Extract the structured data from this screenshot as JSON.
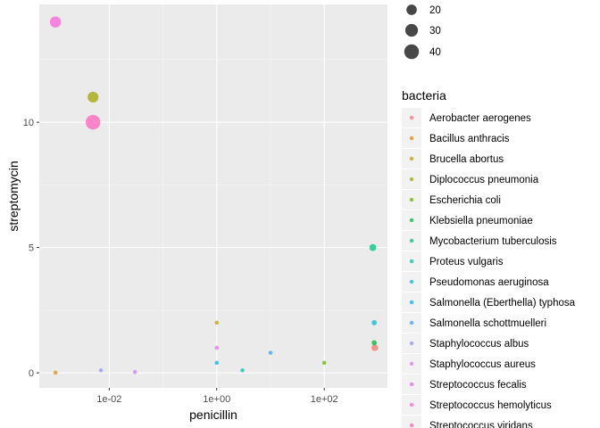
{
  "chart_data": {
    "type": "scatter",
    "xlabel": "penicillin",
    "ylabel": "streptomycin",
    "x_scale": "log10",
    "xlim": [
      0.0005,
      1500
    ],
    "ylim": [
      -0.6,
      14.7
    ],
    "x_ticks": [
      {
        "value": 0.01,
        "label": "1e-02"
      },
      {
        "value": 1,
        "label": "1e+00"
      },
      {
        "value": 100,
        "label": "1e+02"
      }
    ],
    "y_ticks": [
      {
        "value": 0,
        "label": "0"
      },
      {
        "value": 5,
        "label": "5"
      },
      {
        "value": 10,
        "label": "10"
      }
    ],
    "grid": true,
    "legend_position": "right",
    "size_legend": {
      "title": "",
      "entries": [
        {
          "value": 20,
          "label": "20"
        },
        {
          "value": 30,
          "label": "30"
        },
        {
          "value": 40,
          "label": "40"
        }
      ]
    },
    "color_legend": {
      "title": "bacteria",
      "entries": [
        {
          "name": "Aerobacter aerogenes",
          "color": "#F8766D"
        },
        {
          "name": "Bacillus anthracis",
          "color": "#E58700"
        },
        {
          "name": "Brucella abortus",
          "color": "#C99800"
        },
        {
          "name": "Diplococcus pneumonia",
          "color": "#A3A500"
        },
        {
          "name": "Escherichia coli",
          "color": "#6BB100"
        },
        {
          "name": "Klebsiella pneumoniae",
          "color": "#00BA38"
        },
        {
          "name": "Mycobacterium tuberculosis",
          "color": "#00BF7D"
        },
        {
          "name": "Proteus vulgaris",
          "color": "#00C0AF"
        },
        {
          "name": "Pseudomonas aeruginosa",
          "color": "#00BCD8"
        },
        {
          "name": "Salmonella (Eberthella) typhosa",
          "color": "#00B0F6"
        },
        {
          "name": "Salmonella schottmuelleri",
          "color": "#35A2FF"
        },
        {
          "name": "Staphylococcus albus",
          "color": "#9590FF"
        },
        {
          "name": "Staphylococcus aureus",
          "color": "#C77CFF"
        },
        {
          "name": "Streptococcus fecalis",
          "color": "#E76BF3"
        },
        {
          "name": "Streptococcus hemolyticus",
          "color": "#FA62DB"
        },
        {
          "name": "Streptococcus viridans",
          "color": "#FF62BC"
        }
      ]
    },
    "points": [
      {
        "bacteria": "Aerobacter aerogenes",
        "penicillin": 870,
        "streptomycin": 1,
        "size": 8
      },
      {
        "bacteria": "Bacillus anthracis",
        "penicillin": 0.001,
        "streptomycin": 0.01,
        "size": 3
      },
      {
        "bacteria": "Brucella abortus",
        "penicillin": 1,
        "streptomycin": 2,
        "size": 3
      },
      {
        "bacteria": "Diplococcus pneumonia",
        "penicillin": 0.005,
        "streptomycin": 11,
        "size": 22
      },
      {
        "bacteria": "Escherichia coli",
        "penicillin": 100,
        "streptomycin": 0.4,
        "size": 3
      },
      {
        "bacteria": "Klebsiella pneumoniae",
        "penicillin": 850,
        "streptomycin": 1.2,
        "size": 5
      },
      {
        "bacteria": "Mycobacterium tuberculosis",
        "penicillin": 800,
        "streptomycin": 5,
        "size": 9
      },
      {
        "bacteria": "Proteus vulgaris",
        "penicillin": 3,
        "streptomycin": 0.1,
        "size": 3
      },
      {
        "bacteria": "Pseudomonas aeruginosa",
        "penicillin": 850,
        "streptomycin": 2,
        "size": 5
      },
      {
        "bacteria": "Salmonella (Eberthella) typhosa",
        "penicillin": 1,
        "streptomycin": 0.4,
        "size": 3
      },
      {
        "bacteria": "Salmonella schottmuelleri",
        "penicillin": 10,
        "streptomycin": 0.8,
        "size": 3
      },
      {
        "bacteria": "Staphylococcus albus",
        "penicillin": 0.007,
        "streptomycin": 0.1,
        "size": 3
      },
      {
        "bacteria": "Staphylococcus aureus",
        "penicillin": 0.03,
        "streptomycin": 0.03,
        "size": 3
      },
      {
        "bacteria": "Streptococcus fecalis",
        "penicillin": 1,
        "streptomycin": 1,
        "size": 3
      },
      {
        "bacteria": "Streptococcus hemolyticus",
        "penicillin": 0.001,
        "streptomycin": 14,
        "size": 23
      },
      {
        "bacteria": "Streptococcus viridans",
        "penicillin": 0.005,
        "streptomycin": 10,
        "size": 40
      }
    ]
  }
}
